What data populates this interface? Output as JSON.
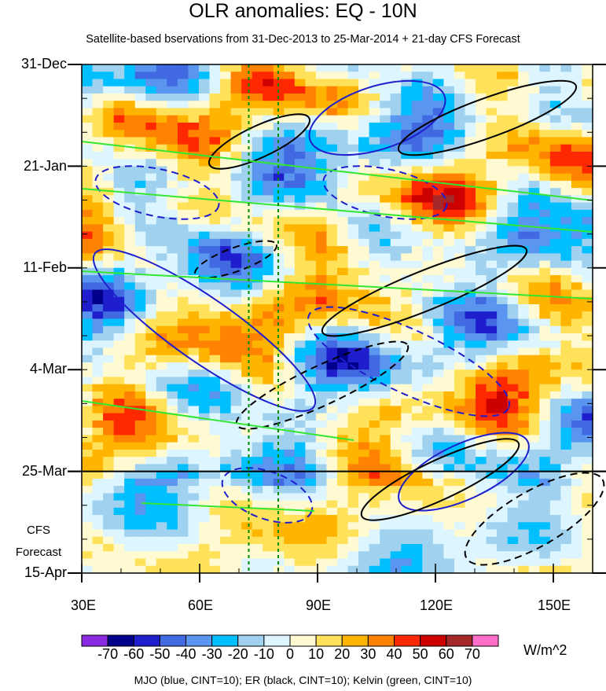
{
  "chart_data": {
    "type": "heatmap",
    "title": "OLR anomalies: EQ - 10N",
    "subtitle": "Satellite-based bservations from 31-Dec-2013 to 25-Mar-2014 + 21-day CFS Forecast",
    "x_tick_labels": [
      "30E",
      "60E",
      "90E",
      "120E",
      "150E"
    ],
    "x_ticks": [
      30,
      60,
      90,
      120,
      150
    ],
    "xlim": [
      30,
      160
    ],
    "y_tick_labels": [
      "31-Dec",
      "21-Jan",
      "11-Feb",
      "4-Mar",
      "25-Mar",
      "15-Apr"
    ],
    "y_ticks": [
      "2013-12-31",
      "2014-01-21",
      "2014-02-11",
      "2014-03-04",
      "2014-03-25",
      "2014-04-15"
    ],
    "ylim": [
      "2013-12-31",
      "2014-04-15"
    ],
    "forecast_start": "2014-03-25",
    "forecast_label_1": "CFS",
    "forecast_label_2": "Forecast",
    "reference_lines_lon": [
      72.5,
      80
    ],
    "colorbar": {
      "labels": [
        "-70",
        "-60",
        "-50",
        "-40",
        "-30",
        "-20",
        "-10",
        "0",
        "10",
        "20",
        "30",
        "40",
        "50",
        "60",
        "70"
      ],
      "colors": [
        "#8a2be2",
        "#00008b",
        "#1e1ecd",
        "#4169e1",
        "#5a96f0",
        "#00bfff",
        "#a0d2f0",
        "#dcf5ff",
        "#fffad2",
        "#ffe15a",
        "#ffb400",
        "#ff8200",
        "#ff2800",
        "#cd0000",
        "#a52828",
        "#ff6ec8"
      ],
      "units": "W/m^2"
    },
    "footer": "MJO (blue, CINT=10); ER (black, CINT=10); Kelvin (green, CINT=10)",
    "contour_colors": {
      "mjo": "#1e1ecd",
      "er": "#000000",
      "kelvin": "#32e632",
      "ref": "#008c00"
    }
  }
}
